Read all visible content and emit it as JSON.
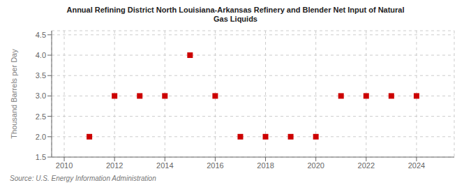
{
  "chart_data": {
    "type": "scatter",
    "title": "Annual Refining District North Louisiana-Arkansas Refinery and Blender Net Input of Natural\nGas Liquids",
    "y_label": "Thousand Barrels per Day",
    "annotations": [
      "Source: U.S. Energy Information Administration"
    ],
    "x": [
      2011,
      2012,
      2013,
      2014,
      2015,
      2016,
      2017,
      2018,
      2019,
      2020,
      2021,
      2022,
      2023,
      2024
    ],
    "values": [
      2.0,
      3.0,
      3.0,
      3.0,
      4.0,
      3.0,
      2.0,
      2.0,
      2.0,
      2.0,
      3.0,
      3.0,
      3.0,
      3.0
    ],
    "color": "#cc0000",
    "marker": "square",
    "xlim": [
      2009.5,
      2025.5
    ],
    "ylim": [
      1.5,
      4.6
    ],
    "xticks": [
      2010,
      2012,
      2014,
      2016,
      2018,
      2020,
      2022,
      2024
    ],
    "yticks": [
      1.5,
      {
        "value": 2.0,
        "label": "2.0"
      },
      2.5,
      {
        "value": 3.0,
        "label": "3.0"
      },
      3.5,
      {
        "value": 4.0,
        "label": "4.0"
      },
      4.5
    ],
    "grid": true
  }
}
